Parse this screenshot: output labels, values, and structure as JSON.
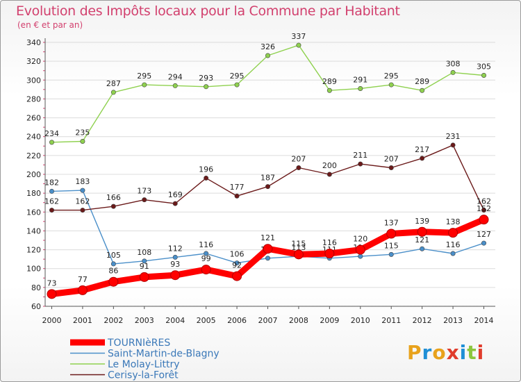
{
  "title": "Evolution des Impôts locaux pour la Commune par Habitant",
  "subtitle": "(en € et par an)",
  "logo": {
    "text": "Proxiti",
    "colors": [
      "#e8a21c",
      "#1f8fd6",
      "#e8a21c",
      "#e03c2c",
      "#1f8fd6",
      "#8cc63e",
      "#e03c2c"
    ]
  },
  "chart_data": {
    "type": "line",
    "x": [
      2000,
      2001,
      2002,
      2003,
      2004,
      2005,
      2006,
      2007,
      2008,
      2009,
      2010,
      2011,
      2012,
      2013,
      2014
    ],
    "ylim": [
      60,
      340
    ],
    "yticks": [
      60,
      80,
      100,
      120,
      140,
      160,
      180,
      200,
      220,
      240,
      260,
      280,
      300,
      320,
      340
    ],
    "grid": "horizontal",
    "legend": "bottom-left",
    "series": [
      {
        "name": "Saint-Martin-de-Blagny",
        "color": "#4a8fc9",
        "values": [
          182,
          183,
          105,
          108,
          112,
          116,
          106,
          111,
          113,
          111,
          113,
          115,
          121,
          116,
          127
        ]
      },
      {
        "name": "Le Molay-Littry",
        "color": "#8fd14f",
        "values": [
          234,
          235,
          287,
          295,
          294,
          293,
          295,
          326,
          337,
          289,
          291,
          295,
          289,
          308,
          305
        ]
      },
      {
        "name": "Cerisy-la-Forêt",
        "color": "#6b1a1a",
        "values": [
          162,
          162,
          166,
          173,
          169,
          196,
          177,
          187,
          207,
          200,
          211,
          207,
          217,
          231,
          162
        ]
      },
      {
        "name": "TOURNIèRES",
        "color": "#ff0000",
        "values": [
          73,
          77,
          86,
          91,
          93,
          99,
          92,
          121,
          115,
          116,
          120,
          137,
          139,
          138,
          152
        ]
      }
    ]
  }
}
